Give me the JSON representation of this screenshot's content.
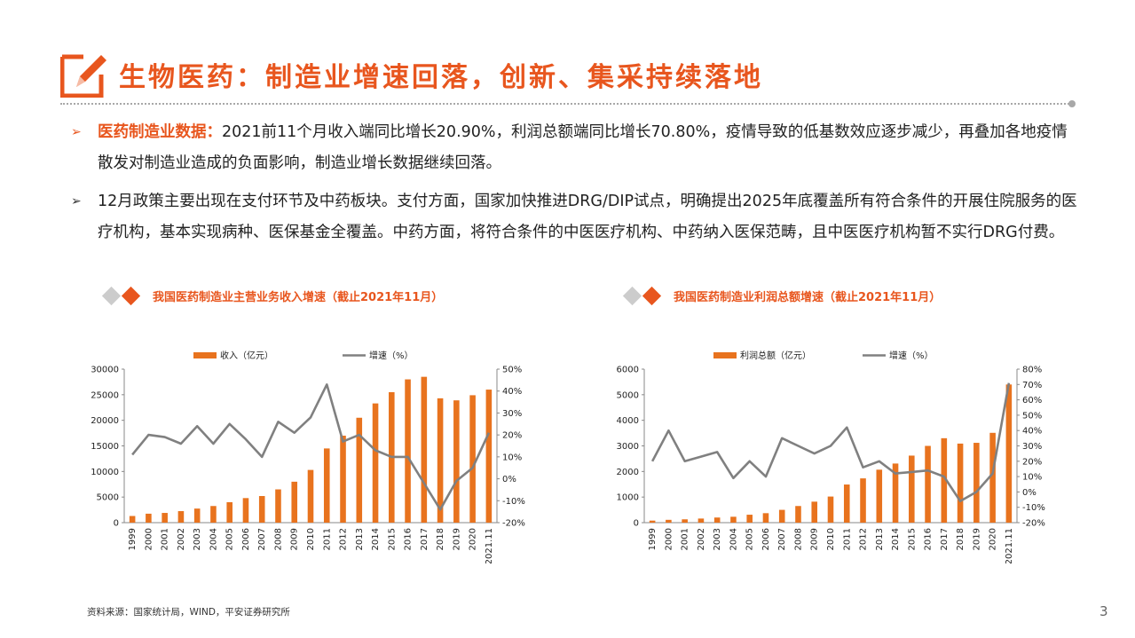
{
  "header": {
    "title": "生物医药：制造业增速回落，创新、集采持续落地"
  },
  "bullets": [
    {
      "highlight": "医药制造业数据：",
      "text": "2021前11个月收入端同比增长20.90%，利润总额端同比增长70.80%，疫情导致的低基数效应逐步减少，再叠加各地疫情散发对制造业造成的负面影响，制造业增长数据继续回落。"
    },
    {
      "highlight": "",
      "text": "12月政策主要出现在支付环节及中药板块。支付方面，国家加快推进DRG/DIP试点，明确提出2025年底覆盖所有符合条件的开展住院服务的医疗机构，基本实现病种、医保基金全覆盖。中药方面，将符合条件的中医医疗机构、中药纳入医保范畴，且中医医疗机构暂不实行DRG付费。"
    }
  ],
  "colors": {
    "accent": "#E8561E",
    "bar": "#E8731E",
    "line": "#808080",
    "gray": "#c8c8c8"
  },
  "chart_data": [
    {
      "type": "bar",
      "title": "我国医药制造业主营业务收入增速（截止2021年11月）",
      "categories": [
        "1999",
        "2000",
        "2001",
        "2002",
        "2003",
        "2004",
        "2005",
        "2006",
        "2007",
        "2008",
        "2009",
        "2010",
        "2011",
        "2012",
        "2013",
        "2014",
        "2015",
        "2016",
        "2017",
        "2018",
        "2019",
        "2020",
        "2021.11"
      ],
      "series": [
        {
          "name": "收入（亿元）",
          "kind": "bar",
          "axis": "left",
          "values": [
            1300,
            1750,
            1900,
            2250,
            2750,
            3250,
            4000,
            4800,
            5200,
            6500,
            8000,
            10300,
            14500,
            17000,
            20500,
            23300,
            25500,
            28000,
            28500,
            24300,
            23900,
            24900,
            26000
          ]
        },
        {
          "name": "增速（%）",
          "kind": "line",
          "axis": "right",
          "values": [
            11,
            20,
            19,
            16,
            24,
            16,
            25,
            18,
            10,
            26,
            21,
            28,
            43,
            17,
            20,
            13,
            10,
            10,
            -2,
            -14,
            -1,
            5,
            21
          ]
        }
      ],
      "yleft": {
        "min": 0,
        "max": 30000,
        "ticks": [
          "0",
          "5000",
          "10000",
          "15000",
          "20000",
          "25000",
          "30000"
        ]
      },
      "yright": {
        "min": -20,
        "max": 50,
        "ticks": [
          "-20%",
          "-10%",
          "0%",
          "10%",
          "20%",
          "30%",
          "40%",
          "50%"
        ]
      }
    },
    {
      "type": "bar",
      "title": "我国医药制造业利润总额增速（截止2021年11月）",
      "categories": [
        "1999",
        "2000",
        "2001",
        "2002",
        "2003",
        "2004",
        "2005",
        "2006",
        "2007",
        "2008",
        "2009",
        "2010",
        "2011",
        "2012",
        "2013",
        "2014",
        "2015",
        "2016",
        "2017",
        "2018",
        "2019",
        "2020",
        "2021.11"
      ],
      "series": [
        {
          "name": "利润总额（亿元）",
          "kind": "bar",
          "axis": "left",
          "values": [
            80,
            110,
            130,
            160,
            200,
            230,
            310,
            370,
            500,
            650,
            820,
            1020,
            1490,
            1730,
            2070,
            2310,
            2620,
            3000,
            3300,
            3090,
            3120,
            3510,
            5400
          ]
        },
        {
          "name": "增速（%）",
          "kind": "line",
          "axis": "right",
          "values": [
            20,
            40,
            20,
            23,
            26,
            9,
            20,
            10,
            35,
            30,
            25,
            30,
            42,
            16,
            20,
            12,
            13,
            14,
            10,
            -6,
            0,
            12,
            71
          ]
        }
      ],
      "yleft": {
        "min": 0,
        "max": 6000,
        "ticks": [
          "0",
          "1000",
          "2000",
          "3000",
          "4000",
          "5000",
          "6000"
        ]
      },
      "yright": {
        "min": -20,
        "max": 80,
        "ticks": [
          "-20%",
          "-10%",
          "0%",
          "10%",
          "20%",
          "30%",
          "40%",
          "50%",
          "60%",
          "70%",
          "80%"
        ]
      }
    }
  ],
  "footer": {
    "source": "资料来源：国家统计局，WIND，平安证券研究所",
    "page_number": "3"
  }
}
